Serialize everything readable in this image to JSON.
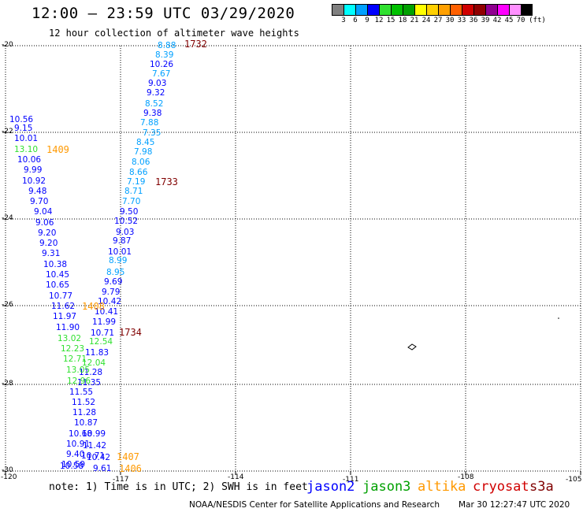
{
  "header": {
    "title": "12:00 — 23:59 UTC 03/29/2020",
    "subtitle": "12 hour collection of altimeter wave heights"
  },
  "scale": {
    "unit_label": "(ft)",
    "labels": [
      "3",
      "6",
      "9",
      "12",
      "15",
      "18",
      "21",
      "24",
      "27",
      "30",
      "33",
      "36",
      "39",
      "42",
      "45",
      "70"
    ],
    "colors": [
      "#808080",
      "#00ffff",
      "#00a0ff",
      "#0000ff",
      "#30e030",
      "#00c000",
      "#00a000",
      "#ffff00",
      "#ffd000",
      "#ffa000",
      "#ff6000",
      "#d00000",
      "#900000",
      "#900090",
      "#ff00ff",
      "#ff90ff",
      "#000000"
    ]
  },
  "axes": {
    "lon_labels": [
      "-120",
      "-117",
      "-114",
      "-111",
      "-108",
      "-105"
    ],
    "lat_labels": [
      "-20",
      "-22",
      "-24",
      "-26",
      "-28",
      "-30"
    ]
  },
  "passes": [
    {
      "label": "1732",
      "color": "#800000"
    },
    {
      "label": "1733",
      "color": "#800000"
    },
    {
      "label": "1734",
      "color": "#800000"
    },
    {
      "label": "1409",
      "color": "#ff9900"
    },
    {
      "label": "1408",
      "color": "#ff9900"
    },
    {
      "label": "1407",
      "color": "#ff9900"
    },
    {
      "label": "1406",
      "color": "#ff9900"
    }
  ],
  "wave_heights": [
    {
      "v": "8.88",
      "c": "#00a0ff"
    },
    {
      "v": "8.39",
      "c": "#00a0ff"
    },
    {
      "v": "10.26",
      "c": "#0000ff"
    },
    {
      "v": "7.67",
      "c": "#00a0ff"
    },
    {
      "v": "9.03",
      "c": "#0000ff"
    },
    {
      "v": "9.32",
      "c": "#0000ff"
    },
    {
      "v": "8.52",
      "c": "#00a0ff"
    },
    {
      "v": "9.38",
      "c": "#0000ff"
    },
    {
      "v": "7.88",
      "c": "#00a0ff"
    },
    {
      "v": "7.35",
      "c": "#00a0ff"
    },
    {
      "v": "8.45",
      "c": "#00a0ff"
    },
    {
      "v": "7.98",
      "c": "#00a0ff"
    },
    {
      "v": "8.06",
      "c": "#00a0ff"
    },
    {
      "v": "8.66",
      "c": "#00a0ff"
    },
    {
      "v": "7.19",
      "c": "#00a0ff"
    },
    {
      "v": "8.71",
      "c": "#00a0ff"
    },
    {
      "v": "7.70",
      "c": "#00a0ff"
    },
    {
      "v": "9.50",
      "c": "#0000ff"
    },
    {
      "v": "10.52",
      "c": "#0000ff"
    },
    {
      "v": "9.03",
      "c": "#0000ff"
    },
    {
      "v": "9.87",
      "c": "#0000ff"
    },
    {
      "v": "10.01",
      "c": "#0000ff"
    },
    {
      "v": "8.99",
      "c": "#00a0ff"
    },
    {
      "v": "8.95",
      "c": "#00a0ff"
    },
    {
      "v": "9.69",
      "c": "#0000ff"
    },
    {
      "v": "9.79",
      "c": "#0000ff"
    },
    {
      "v": "10.42",
      "c": "#0000ff"
    },
    {
      "v": "10.41",
      "c": "#0000ff"
    },
    {
      "v": "11.99",
      "c": "#0000ff"
    },
    {
      "v": "10.71",
      "c": "#0000ff"
    },
    {
      "v": "12.54",
      "c": "#30e030"
    },
    {
      "v": "11.83",
      "c": "#0000ff"
    },
    {
      "v": "12.04",
      "c": "#30e030"
    },
    {
      "v": "11.28",
      "c": "#0000ff"
    },
    {
      "v": "11.35",
      "c": "#0000ff"
    },
    {
      "v": "10.56",
      "c": "#0000ff"
    },
    {
      "v": "9.15",
      "c": "#0000ff"
    },
    {
      "v": "10.01",
      "c": "#0000ff"
    },
    {
      "v": "13.10",
      "c": "#30e030"
    },
    {
      "v": "10.06",
      "c": "#0000ff"
    },
    {
      "v": "9.99",
      "c": "#0000ff"
    },
    {
      "v": "10.92",
      "c": "#0000ff"
    },
    {
      "v": "9.48",
      "c": "#0000ff"
    },
    {
      "v": "9.70",
      "c": "#0000ff"
    },
    {
      "v": "9.04",
      "c": "#0000ff"
    },
    {
      "v": "9.06",
      "c": "#0000ff"
    },
    {
      "v": "9.20",
      "c": "#0000ff"
    },
    {
      "v": "9.20",
      "c": "#0000ff"
    },
    {
      "v": "9.31",
      "c": "#0000ff"
    },
    {
      "v": "10.38",
      "c": "#0000ff"
    },
    {
      "v": "10.45",
      "c": "#0000ff"
    },
    {
      "v": "10.65",
      "c": "#0000ff"
    },
    {
      "v": "10.77",
      "c": "#0000ff"
    },
    {
      "v": "11.62",
      "c": "#0000ff"
    },
    {
      "v": "11.97",
      "c": "#0000ff"
    },
    {
      "v": "11.90",
      "c": "#0000ff"
    },
    {
      "v": "13.02",
      "c": "#30e030"
    },
    {
      "v": "12.23",
      "c": "#30e030"
    },
    {
      "v": "12.71",
      "c": "#30e030"
    },
    {
      "v": "13.05",
      "c": "#30e030"
    },
    {
      "v": "12.96",
      "c": "#30e030"
    },
    {
      "v": "11.55",
      "c": "#0000ff"
    },
    {
      "v": "11.52",
      "c": "#0000ff"
    },
    {
      "v": "11.28",
      "c": "#0000ff"
    },
    {
      "v": "10.87",
      "c": "#0000ff"
    },
    {
      "v": "10.68",
      "c": "#0000ff"
    },
    {
      "v": "10.99",
      "c": "#0000ff"
    },
    {
      "v": "10.91",
      "c": "#0000ff"
    },
    {
      "v": "11.42",
      "c": "#0000ff"
    },
    {
      "v": "9.40",
      "c": "#0000ff"
    },
    {
      "v": "10.71",
      "c": "#0000ff"
    },
    {
      "v": "10.59",
      "c": "#0000ff"
    },
    {
      "v": "10.42",
      "c": "#0000ff"
    },
    {
      "v": "10.58",
      "c": "#0000ff"
    },
    {
      "v": "9.61",
      "c": "#0000ff"
    }
  ],
  "note": {
    "text": "note: 1) Time is in UTC; 2) SWH is in feet"
  },
  "satellites": [
    {
      "name": "jason2",
      "color": "#0000ff"
    },
    {
      "name": "jason3",
      "color": "#00a000"
    },
    {
      "name": "altika",
      "color": "#ff9900"
    },
    {
      "name": "cryosat",
      "color": "#d00000"
    },
    {
      "name": "s3a",
      "color": "#800000"
    }
  ],
  "footer": {
    "credit": "NOAA/NESDIS Center for Satellite Applications and Research",
    "timestamp": "Mar 30 12:27:47 UTC 2020"
  }
}
